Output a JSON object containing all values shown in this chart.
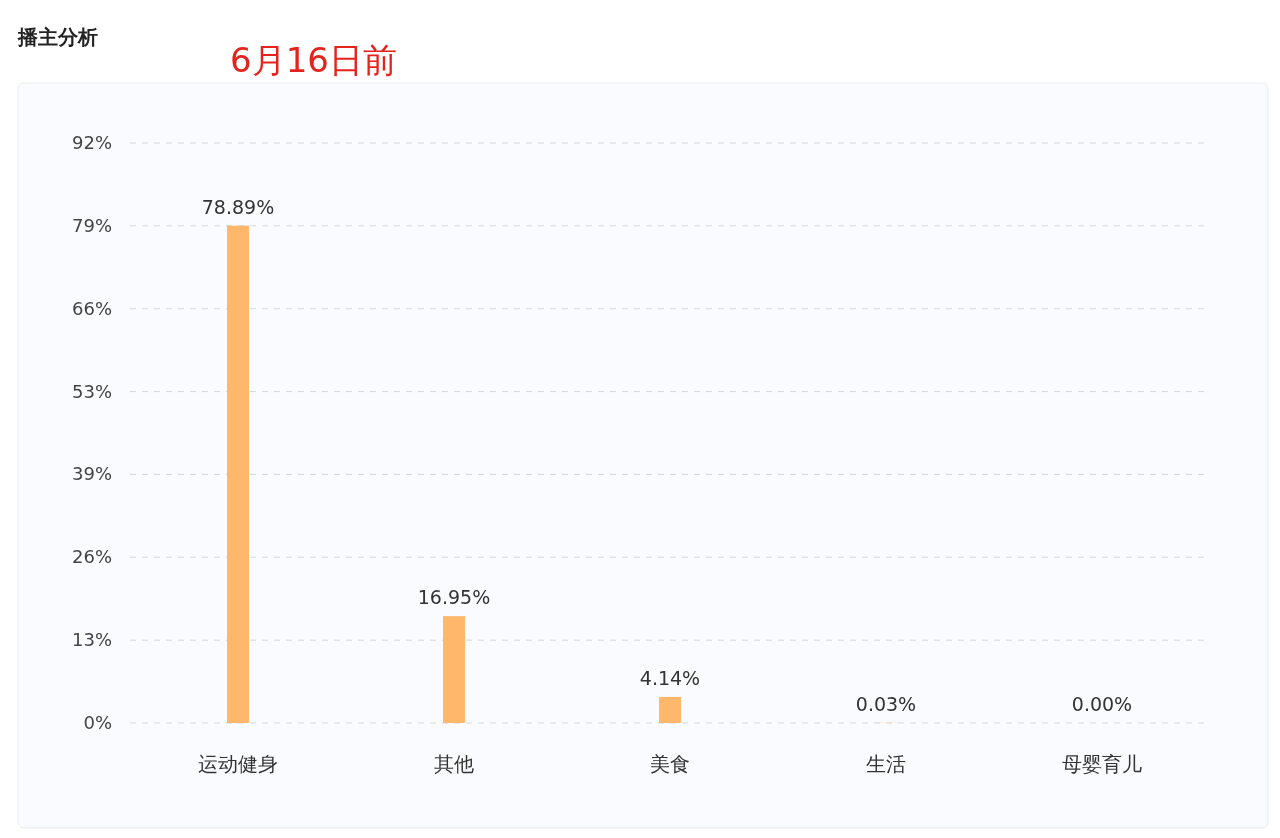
{
  "chart_data": {
    "type": "bar",
    "title": "播主分析",
    "subtitle": "6月16日前",
    "categories": [
      "运动健身",
      "其他",
      "美食",
      "生活",
      "母婴育儿"
    ],
    "values": [
      78.89,
      16.95,
      4.14,
      0.03,
      0.0
    ],
    "value_labels": [
      "78.89%",
      "16.95%",
      "4.14%",
      "0.03%",
      "0.00%"
    ],
    "color": "#ffb86b",
    "ylim": [
      0,
      92
    ],
    "yticks": [
      {
        "value": 0,
        "label": "0%"
      },
      {
        "value": 13.14,
        "label": "13%"
      },
      {
        "value": 26.29,
        "label": "26%"
      },
      {
        "value": 39.43,
        "label": "39%"
      },
      {
        "value": 52.57,
        "label": "53%"
      },
      {
        "value": 65.71,
        "label": "66%"
      },
      {
        "value": 78.86,
        "label": "79%"
      },
      {
        "value": 92,
        "label": "92%"
      }
    ],
    "grid": "y"
  }
}
